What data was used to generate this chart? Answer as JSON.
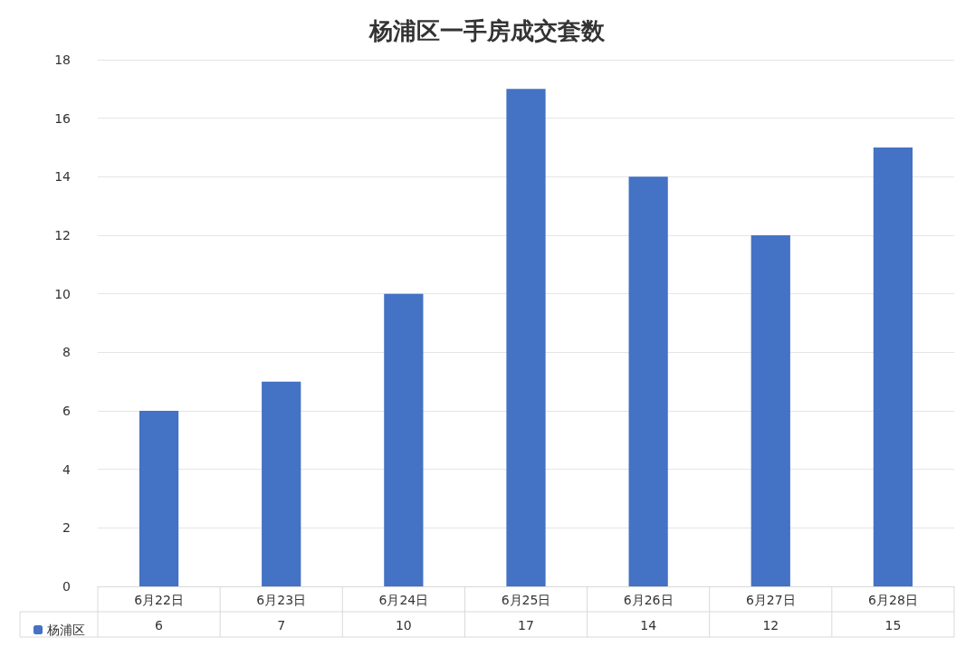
{
  "chart_data": {
    "type": "bar",
    "title": "杨浦区一手房成交套数",
    "categories": [
      "6月22日",
      "6月23日",
      "6月24日",
      "6月25日",
      "6月26日",
      "6月27日",
      "6月28日"
    ],
    "series": [
      {
        "name": "杨浦区",
        "color": "#4472c4",
        "values": [
          6,
          7,
          10,
          17,
          14,
          12,
          15
        ]
      }
    ],
    "ylim": [
      0,
      18
    ],
    "yticks": [
      0,
      2,
      4,
      6,
      8,
      10,
      12,
      14,
      16,
      18
    ],
    "grid": "y",
    "legend": "bottom left",
    "data_labels": true
  }
}
